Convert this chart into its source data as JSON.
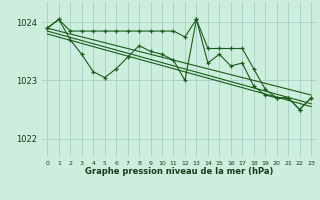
{
  "bg_color": "#cceedd",
  "grid_color": "#aacccc",
  "line_color": "#1a5c1a",
  "xlabel": "Graphe pression niveau de la mer (hPa)",
  "xlim": [
    -0.5,
    23.5
  ],
  "ylim": [
    1021.7,
    1024.35
  ],
  "yticks": [
    1022,
    1023,
    1024
  ],
  "xticks": [
    0,
    1,
    2,
    3,
    4,
    5,
    6,
    7,
    8,
    9,
    10,
    11,
    12,
    13,
    14,
    15,
    16,
    17,
    18,
    19,
    20,
    21,
    22,
    23
  ],
  "line_main": [
    1023.9,
    1024.05,
    1023.85,
    1023.85,
    1023.85,
    1023.85,
    1023.85,
    1023.85,
    1023.85,
    1023.85,
    1023.85,
    1023.85,
    1023.75,
    1024.05,
    1023.55,
    1023.55,
    1023.55,
    1023.55,
    1023.2,
    1022.85,
    1022.7,
    1022.7,
    1022.5,
    1022.7
  ],
  "line_wiggly": [
    1023.9,
    1024.05,
    1023.7,
    1023.45,
    1023.15,
    1023.05,
    1023.2,
    1023.4,
    1023.6,
    1023.5,
    1023.45,
    1023.35,
    1023.0,
    1024.05,
    1023.3,
    1023.45,
    1023.25,
    1023.3,
    1022.9,
    1022.75,
    1022.7,
    1022.7,
    1022.5,
    1022.7
  ],
  "trend_lines": [
    {
      "x": [
        0,
        23
      ],
      "y": [
        1023.9,
        1022.75
      ]
    },
    {
      "x": [
        0,
        23
      ],
      "y": [
        1023.85,
        1022.6
      ]
    },
    {
      "x": [
        0,
        23
      ],
      "y": [
        1023.8,
        1022.55
      ]
    }
  ]
}
